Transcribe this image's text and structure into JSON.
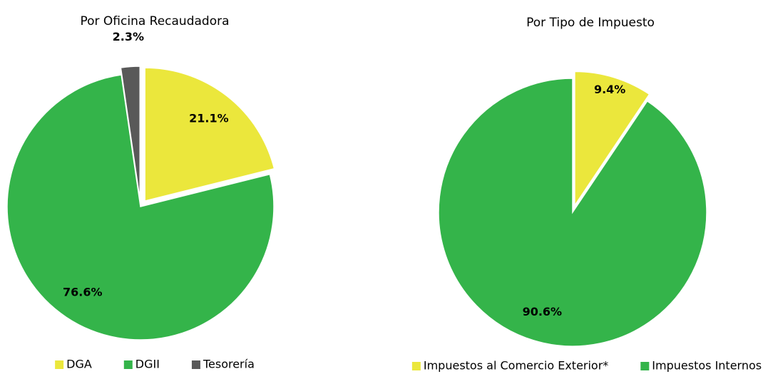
{
  "chart_data": [
    {
      "type": "pie",
      "title": "Por Oficina Recaudadora",
      "categories": [
        "DGA",
        "DGII",
        "Tesorería"
      ],
      "values": [
        21.1,
        76.6,
        2.3
      ],
      "value_labels": [
        "21.1%",
        "76.6%",
        "2.3%"
      ],
      "colors": [
        "#ebe73c",
        "#34b44a",
        "#595959"
      ]
    },
    {
      "type": "pie",
      "title": "Por Tipo de Impuesto",
      "categories": [
        "Impuestos al Comercio Exterior*",
        "Impuestos Internos"
      ],
      "values": [
        9.4,
        90.6
      ],
      "value_labels": [
        "9.4%",
        "90.6%"
      ],
      "colors": [
        "#ebe73c",
        "#34b44a"
      ]
    }
  ]
}
